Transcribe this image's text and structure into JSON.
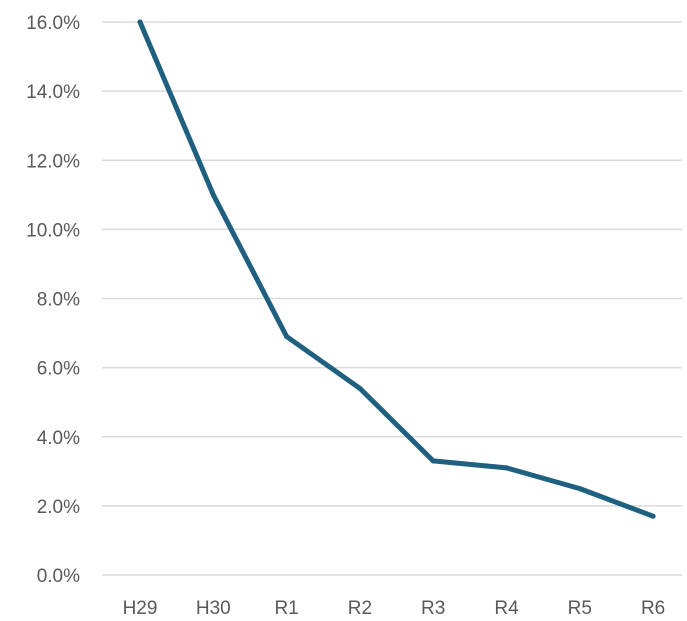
{
  "chart_data": {
    "type": "line",
    "title": "",
    "xlabel": "",
    "ylabel": "",
    "categories": [
      "H29",
      "H30",
      "R1",
      "R2",
      "R3",
      "R4",
      "R5",
      "R6"
    ],
    "series": [
      {
        "values": [
          16.0,
          11.0,
          6.9,
          5.4,
          3.3,
          3.1,
          2.5,
          1.7
        ]
      }
    ],
    "ylim": [
      0,
      16
    ],
    "y_ticks": [
      0,
      2,
      4,
      6,
      8,
      10,
      12,
      14,
      16
    ],
    "y_tick_labels": [
      "0.0%",
      "2.0%",
      "4.0%",
      "6.0%",
      "8.0%",
      "10.0%",
      "12.0%",
      "14.0%",
      "16.0%"
    ],
    "grid": true,
    "legend": "none",
    "colors": {
      "line": "#1f5f7f",
      "grid": "#d9d9d9",
      "text": "#595959"
    }
  }
}
